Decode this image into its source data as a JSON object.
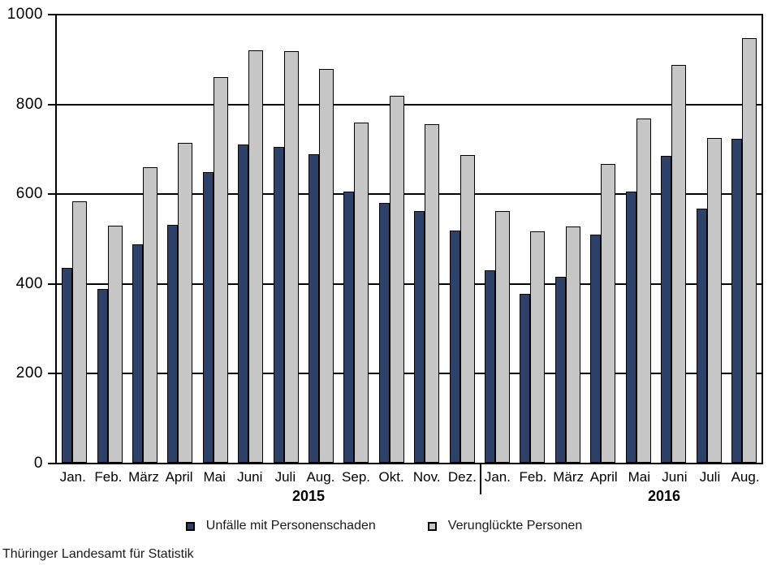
{
  "chart_data": {
    "type": "bar",
    "title": "",
    "xlabel": "",
    "ylabel": "",
    "ylim": [
      0,
      1000
    ],
    "yticks": [
      0,
      200,
      400,
      600,
      800,
      1000
    ],
    "grid": true,
    "legend_position": "bottom",
    "categories": [
      "Jan.",
      "Feb.",
      "März",
      "April",
      "Mai",
      "Juni",
      "Juli",
      "Aug.",
      "Sep.",
      "Okt.",
      "Nov.",
      "Dez.",
      "Jan.",
      "Feb.",
      "März",
      "April",
      "Mai",
      "Juni",
      "Juli",
      "Aug."
    ],
    "year_groups": [
      {
        "label": "2015",
        "months": 12
      },
      {
        "label": "2016",
        "months": 8
      }
    ],
    "series": [
      {
        "name": "Unfälle mit Personenschaden",
        "color": "#2e4269",
        "values": [
          435,
          388,
          488,
          532,
          650,
          712,
          706,
          690,
          606,
          580,
          562,
          519,
          430,
          377,
          415,
          510,
          606,
          686,
          568,
          724
        ]
      },
      {
        "name": "Verunglückte Personen",
        "color": "#c6c6c6",
        "values": [
          585,
          530,
          660,
          715,
          862,
          922,
          921,
          881,
          760,
          820,
          757,
          687,
          563,
          518,
          528,
          668,
          770,
          890,
          726,
          950
        ]
      }
    ]
  },
  "footer": {
    "source": "Thüringer Landesamt für Statistik"
  }
}
